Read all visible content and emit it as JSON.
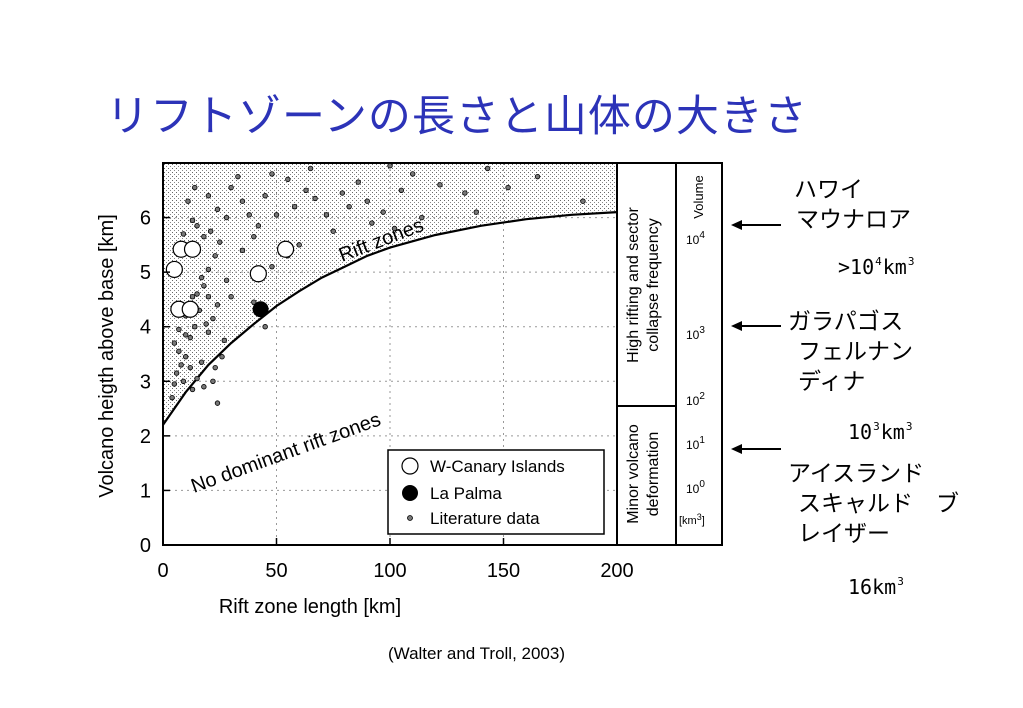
{
  "slide": {
    "title": "リフトゾーンの長さと山体の大きさ",
    "citation": "(Walter and Troll, 2003)"
  },
  "annotations": [
    {
      "lines": [
        "ハワイ",
        "マウナロア"
      ],
      "volume": {
        "prefix": ">10",
        "sup": "4",
        "unit": "km",
        "unit_sup": "3"
      }
    },
    {
      "lines": [
        "ガラパゴス",
        "フェルナン",
        "ディナ"
      ],
      "volume": {
        "prefix": "10",
        "sup": "3",
        "unit": "km",
        "unit_sup": "3"
      }
    },
    {
      "lines": [
        "アイスランド",
        "スキャルド　ブ",
        "レイザー"
      ],
      "volume": {
        "prefix": "16",
        "sup": "",
        "unit": "km",
        "unit_sup": "3"
      }
    }
  ],
  "chart_data": {
    "type": "scatter",
    "xlabel": "Rift zone length [km]",
    "ylabel": "Volcano heigth above base [km]",
    "xlim": [
      0,
      200
    ],
    "ylim": [
      0,
      7
    ],
    "xticks": [
      0,
      50,
      100,
      150,
      200
    ],
    "yticks": [
      0,
      1,
      2,
      3,
      4,
      5,
      6
    ],
    "grid": true,
    "legend_position": "bottom-right",
    "region_labels": [
      "Rift zones",
      "No dominant rift zones"
    ],
    "boundary_curve": {
      "x": [
        0,
        10,
        20,
        30,
        40,
        50,
        60,
        70,
        80,
        90,
        100,
        120,
        140,
        160,
        180,
        200
      ],
      "y": [
        2.2,
        2.8,
        3.3,
        3.7,
        4.05,
        4.38,
        4.65,
        4.9,
        5.1,
        5.3,
        5.45,
        5.68,
        5.85,
        5.97,
        6.05,
        6.1
      ]
    },
    "series": [
      {
        "name": "W-Canary Islands",
        "marker": "open-circle",
        "points": [
          [
            5,
            5.05
          ],
          [
            8,
            5.42
          ],
          [
            13,
            5.42
          ],
          [
            7,
            4.32
          ],
          [
            12,
            4.32
          ],
          [
            42,
            4.97
          ],
          [
            54,
            5.42
          ]
        ]
      },
      {
        "name": "La Palma",
        "marker": "filled-circle",
        "points": [
          [
            43,
            4.32
          ]
        ]
      },
      {
        "name": "Literature data",
        "marker": "small-dot",
        "points": [
          [
            4,
            2.7
          ],
          [
            5,
            2.95
          ],
          [
            6,
            3.15
          ],
          [
            8,
            3.3
          ],
          [
            7,
            3.55
          ],
          [
            10,
            3.45
          ],
          [
            12,
            3.25
          ],
          [
            9,
            3.0
          ],
          [
            13,
            2.85
          ],
          [
            15,
            3.05
          ],
          [
            17,
            3.35
          ],
          [
            18,
            2.9
          ],
          [
            22,
            3.0
          ],
          [
            24,
            2.6
          ],
          [
            23,
            3.25
          ],
          [
            26,
            3.45
          ],
          [
            27,
            3.75
          ],
          [
            20,
            3.9
          ],
          [
            22,
            4.15
          ],
          [
            24,
            4.4
          ],
          [
            20,
            4.55
          ],
          [
            18,
            4.75
          ],
          [
            15,
            4.6
          ],
          [
            16,
            4.3
          ],
          [
            19,
            4.05
          ],
          [
            14,
            4.0
          ],
          [
            12,
            3.8
          ],
          [
            10,
            3.85
          ],
          [
            5,
            3.7
          ],
          [
            7,
            3.95
          ],
          [
            10,
            4.2
          ],
          [
            13,
            4.55
          ],
          [
            17,
            4.9
          ],
          [
            20,
            5.05
          ],
          [
            23,
            5.3
          ],
          [
            25,
            5.55
          ],
          [
            21,
            5.75
          ],
          [
            18,
            5.65
          ],
          [
            15,
            5.85
          ],
          [
            13,
            5.95
          ],
          [
            9,
            5.7
          ],
          [
            11,
            6.3
          ],
          [
            14,
            6.55
          ],
          [
            20,
            6.4
          ],
          [
            24,
            6.15
          ],
          [
            28,
            6.0
          ],
          [
            30,
            6.55
          ],
          [
            35,
            6.3
          ],
          [
            38,
            6.05
          ],
          [
            42,
            5.85
          ],
          [
            45,
            6.4
          ],
          [
            48,
            6.8
          ],
          [
            50,
            6.05
          ],
          [
            55,
            6.7
          ],
          [
            58,
            6.2
          ],
          [
            63,
            6.5
          ],
          [
            67,
            6.35
          ],
          [
            72,
            6.05
          ],
          [
            75,
            5.75
          ],
          [
            79,
            6.45
          ],
          [
            82,
            6.2
          ],
          [
            86,
            6.65
          ],
          [
            90,
            6.3
          ],
          [
            92,
            5.9
          ],
          [
            97,
            6.1
          ],
          [
            102,
            5.8
          ],
          [
            105,
            6.5
          ],
          [
            110,
            6.8
          ],
          [
            114,
            6.0
          ],
          [
            122,
            6.6
          ],
          [
            133,
            6.45
          ],
          [
            138,
            6.1
          ],
          [
            143,
            6.9
          ],
          [
            152,
            6.55
          ],
          [
            165,
            6.75
          ],
          [
            185,
            6.3
          ],
          [
            60,
            5.5
          ],
          [
            55,
            5.3
          ],
          [
            48,
            5.1
          ],
          [
            40,
            5.65
          ],
          [
            35,
            5.4
          ],
          [
            28,
            4.85
          ],
          [
            30,
            4.55
          ],
          [
            40,
            4.45
          ],
          [
            45,
            4.0
          ],
          [
            33,
            6.75
          ],
          [
            65,
            6.9
          ],
          [
            100,
            6.95
          ]
        ]
      }
    ]
  },
  "side_panel": {
    "top_label": "High rifting and sector collapse frequency",
    "bottom_label": "Minor volcano deformation",
    "volume_header": "Volume",
    "volume_unit": "[km3]",
    "volume_ticks": [
      {
        "base": "10",
        "exp": "4"
      },
      {
        "base": "10",
        "exp": "3"
      },
      {
        "base": "10",
        "exp": "2"
      },
      {
        "base": "10",
        "exp": "1"
      },
      {
        "base": "10",
        "exp": "0"
      }
    ]
  }
}
